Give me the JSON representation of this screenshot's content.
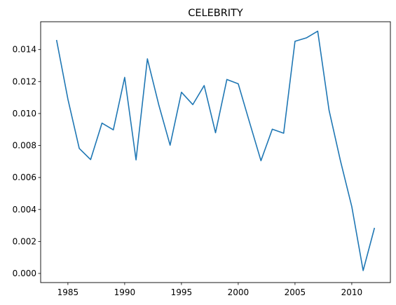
{
  "chart_data": {
    "type": "line",
    "title": "CELEBRITY",
    "xlabel": "",
    "ylabel": "",
    "xlim": [
      1982.6,
      2013.4
    ],
    "ylim": [
      -0.00057,
      0.01574
    ],
    "grid": false,
    "legend": "none",
    "x_ticks": [
      1985,
      1990,
      1995,
      2000,
      2005,
      2010
    ],
    "x_tick_labels": [
      "1985",
      "1990",
      "1995",
      "2000",
      "2005",
      "2010"
    ],
    "y_ticks": [
      0.0,
      0.002,
      0.004,
      0.006,
      0.008,
      0.01,
      0.012,
      0.014
    ],
    "y_tick_labels": [
      "0.000",
      "0.002",
      "0.004",
      "0.006",
      "0.008",
      "0.010",
      "0.012",
      "0.014"
    ],
    "series": [
      {
        "color": "#1f77b4",
        "x": [
          1984,
          1985,
          1986,
          1987,
          1988,
          1989,
          1990,
          1991,
          1992,
          1993,
          1994,
          1995,
          1996,
          1997,
          1998,
          1999,
          2000,
          2001,
          2002,
          2003,
          2004,
          2005,
          2006,
          2007,
          2008,
          2009,
          2010,
          2011,
          2012
        ],
        "y": [
          0.0146,
          0.0109,
          0.00782,
          0.00712,
          0.0094,
          0.00898,
          0.01226,
          0.0071,
          0.01342,
          0.01055,
          0.00802,
          0.01133,
          0.01056,
          0.01175,
          0.0088,
          0.01213,
          0.01186,
          0.00944,
          0.00705,
          0.00902,
          0.00877,
          0.01452,
          0.01473,
          0.01515,
          0.0102,
          0.00705,
          0.00418,
          0.00018,
          0.00285
        ]
      }
    ]
  }
}
